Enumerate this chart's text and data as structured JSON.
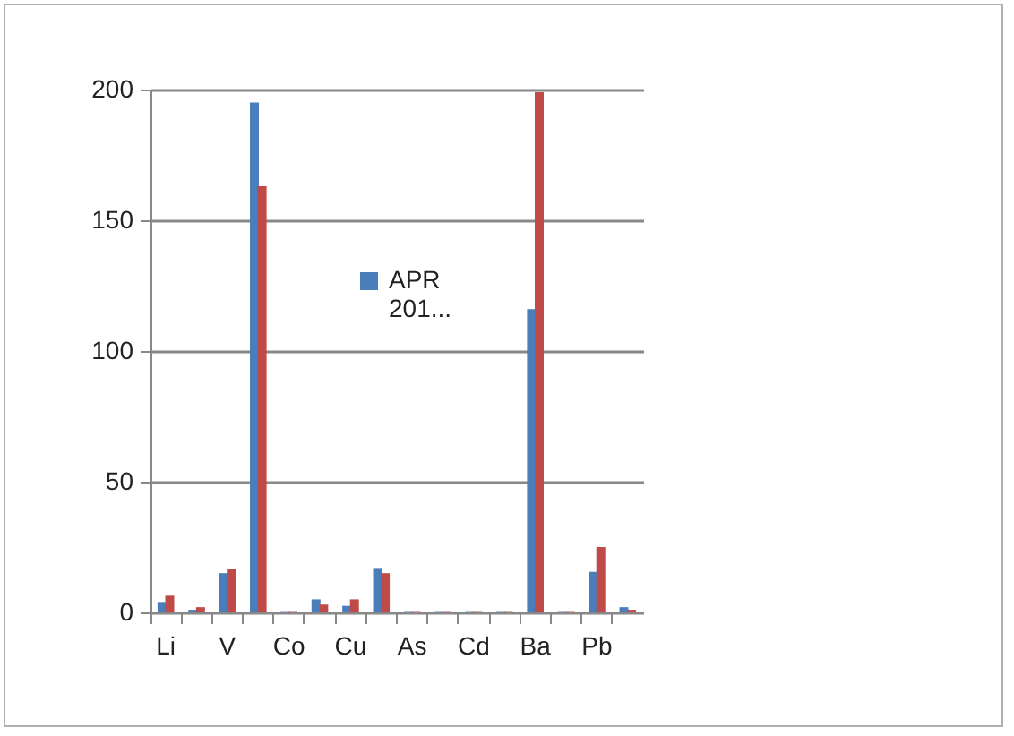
{
  "chart_data": {
    "type": "bar",
    "categories": [
      "Li",
      null,
      "V",
      null,
      "Co",
      null,
      "Cu",
      null,
      "As",
      null,
      "Cd",
      null,
      "Ba",
      null,
      "Pb",
      null
    ],
    "series": [
      {
        "name": "APR 201...",
        "color": "#4a7ebb",
        "values": [
          4,
          1,
          15,
          195,
          0.5,
          5,
          2.5,
          17,
          0.5,
          0.5,
          0.5,
          0.5,
          116,
          0.5,
          15.5,
          2
        ]
      },
      {
        "color": "#be4b48",
        "values": [
          6.4,
          2,
          16.7,
          163,
          0.5,
          3,
          5,
          15,
          0.5,
          0.5,
          0.5,
          0.5,
          199,
          0.5,
          25,
          1
        ]
      }
    ],
    "ylim": [
      0,
      200
    ],
    "yticks": [
      0,
      50,
      100,
      150,
      200
    ],
    "grid": "y",
    "legend": "center"
  }
}
